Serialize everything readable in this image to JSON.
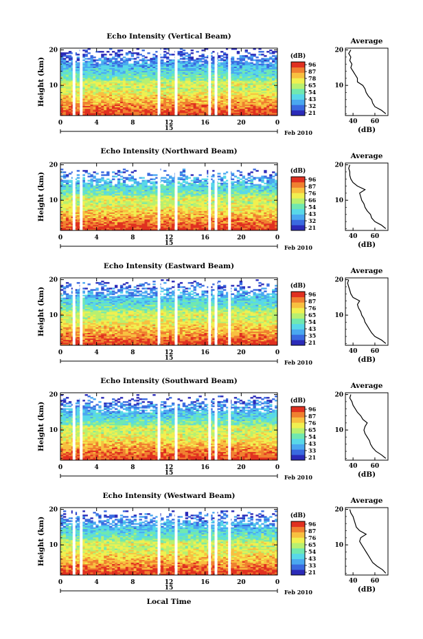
{
  "figure": {
    "date_label": "Feb 2010",
    "xlabel": "Local Time",
    "colorbar_unit": "(dB)",
    "colorbar_ticks": [
      [
        "96",
        "87",
        "78",
        "65",
        "54",
        "43",
        "32",
        "21"
      ],
      [
        "96",
        "87",
        "76",
        "66",
        "54",
        "43",
        "32",
        "21"
      ],
      [
        "96",
        "87",
        "76",
        "65",
        "54",
        "43",
        "35",
        "21"
      ],
      [
        "96",
        "87",
        "76",
        "65",
        "54",
        "43",
        "33",
        "21"
      ],
      [
        "96",
        "87",
        "76",
        "65",
        "54",
        "43",
        "33",
        "21"
      ]
    ],
    "colormap": [
      "#2b2bb8",
      "#3a6ae0",
      "#4aa8f0",
      "#58d8e8",
      "#70e8b0",
      "#b8f070",
      "#f0f050",
      "#f8c040",
      "#f08030",
      "#e03020"
    ]
  },
  "chart_data": [
    {
      "type": "heatmap",
      "title": "Echo Intensity (Vertical Beam)",
      "xlabel": "",
      "ylabel": "Height (km)",
      "x_ticks": [
        "0",
        "4",
        "8",
        "12",
        "16",
        "20",
        "0"
      ],
      "xlim": [
        0,
        24
      ],
      "y_ticks": [
        "10",
        "20"
      ],
      "ylim": [
        1.5,
        20.5
      ],
      "day_marker": "15",
      "data_gaps_hours": [
        1.5,
        2.3,
        10.9,
        12.8,
        16.5,
        17.2,
        18.7
      ],
      "gap_free_top_km": 16,
      "colorbar_range_db": [
        21,
        96
      ],
      "profile": {
        "title": "Average",
        "xlabel": "(dB)",
        "x_ticks": [
          "40",
          "60"
        ],
        "xlim": [
          33,
          72
        ],
        "y_ticks": [
          "10",
          "20"
        ],
        "ylim": [
          1.5,
          20.5
        ],
        "height_km": [
          2,
          3,
          4,
          5,
          6,
          7,
          8,
          9,
          10,
          11,
          12,
          13,
          14,
          15,
          16,
          17,
          18,
          19,
          20
        ],
        "db": [
          70,
          66,
          60,
          58,
          57,
          54,
          52,
          51,
          49,
          44,
          44,
          42,
          40,
          38,
          39,
          37,
          38,
          36,
          38
        ]
      }
    },
    {
      "type": "heatmap",
      "title": "Echo Intensity (Northward Beam)",
      "xlabel": "",
      "ylabel": "Height (km)",
      "x_ticks": [
        "0",
        "4",
        "8",
        "12",
        "16",
        "20",
        "0"
      ],
      "xlim": [
        0,
        24
      ],
      "y_ticks": [
        "10",
        "20"
      ],
      "ylim": [
        1.5,
        20.5
      ],
      "day_marker": "15",
      "data_gaps_hours": [
        1.5,
        2.3,
        10.9,
        12.8,
        16.5,
        17.2,
        18.7
      ],
      "gap_free_top_km": 14,
      "colorbar_range_db": [
        21,
        96
      ],
      "profile": {
        "title": "Average",
        "xlabel": "(dB)",
        "x_ticks": [
          "40",
          "60"
        ],
        "xlim": [
          33,
          72
        ],
        "y_ticks": [
          "10",
          "20"
        ],
        "ylim": [
          1.5,
          20.5
        ],
        "height_km": [
          2,
          3,
          4,
          5,
          6,
          7,
          8,
          9,
          10,
          11,
          12,
          13,
          14,
          15,
          16,
          17,
          18,
          19,
          20
        ],
        "db": [
          70,
          66,
          60,
          57,
          56,
          53,
          51,
          50,
          48,
          47,
          46,
          51,
          44,
          40,
          38,
          37,
          37,
          36,
          37
        ]
      }
    },
    {
      "type": "heatmap",
      "title": "Echo Intensity (Eastward Beam)",
      "xlabel": "",
      "ylabel": "Height (km)",
      "x_ticks": [
        "0",
        "4",
        "8",
        "12",
        "16",
        "20",
        "0"
      ],
      "xlim": [
        0,
        24
      ],
      "y_ticks": [
        "10",
        "20"
      ],
      "ylim": [
        1.5,
        20.5
      ],
      "day_marker": "15",
      "data_gaps_hours": [
        1.5,
        2.3,
        10.9,
        12.8,
        16.5,
        17.2,
        18.7
      ],
      "gap_free_top_km": 15,
      "colorbar_range_db": [
        21,
        96
      ],
      "profile": {
        "title": "Average",
        "xlabel": "(dB)",
        "x_ticks": [
          "40",
          "60"
        ],
        "xlim": [
          33,
          72
        ],
        "y_ticks": [
          "10",
          "20"
        ],
        "ylim": [
          1.5,
          20.5
        ],
        "height_km": [
          2,
          3,
          4,
          5,
          6,
          7,
          8,
          9,
          10,
          11,
          12,
          13,
          14,
          15,
          16,
          17,
          18,
          19,
          20
        ],
        "db": [
          70,
          66,
          60,
          57,
          55,
          53,
          51,
          50,
          48,
          47,
          45,
          44,
          46,
          40,
          38,
          37,
          36,
          35,
          36
        ]
      }
    },
    {
      "type": "heatmap",
      "title": "Echo Intensity (Southward Beam)",
      "xlabel": "",
      "ylabel": "Height (km)",
      "x_ticks": [
        "0",
        "4",
        "8",
        "12",
        "16",
        "20",
        "0"
      ],
      "xlim": [
        0,
        24
      ],
      "y_ticks": [
        "10",
        "20"
      ],
      "ylim": [
        1.5,
        20.5
      ],
      "day_marker": "15",
      "data_gaps_hours": [
        1.5,
        2.3,
        10.9,
        12.8,
        16.5,
        17.2,
        18.7
      ],
      "gap_free_top_km": 15,
      "colorbar_range_db": [
        21,
        96
      ],
      "profile": {
        "title": "Average",
        "xlabel": "(dB)",
        "x_ticks": [
          "40",
          "60"
        ],
        "xlim": [
          33,
          72
        ],
        "y_ticks": [
          "10",
          "20"
        ],
        "ylim": [
          1.5,
          20.5
        ],
        "height_km": [
          2,
          3,
          4,
          5,
          6,
          7,
          8,
          9,
          10,
          11,
          12,
          13,
          14,
          15,
          16,
          17,
          18,
          19,
          20
        ],
        "db": [
          70,
          66,
          61,
          58,
          56,
          55,
          53,
          51,
          50,
          51,
          53,
          49,
          47,
          44,
          42,
          40,
          39,
          37,
          38
        ]
      }
    },
    {
      "type": "heatmap",
      "title": "Echo Intensity (Westward Beam)",
      "xlabel": "",
      "ylabel": "Height (km)",
      "x_ticks": [
        "0",
        "4",
        "8",
        "12",
        "16",
        "20",
        "0"
      ],
      "xlim": [
        0,
        24
      ],
      "y_ticks": [
        "10",
        "20"
      ],
      "ylim": [
        1.5,
        20.5
      ],
      "day_marker": "15",
      "data_gaps_hours": [
        1.5,
        2.3,
        10.9,
        12.8,
        16.5,
        17.2,
        18.7
      ],
      "gap_free_top_km": 15,
      "colorbar_range_db": [
        21,
        96
      ],
      "profile": {
        "title": "Average",
        "xlabel": "(dB)",
        "x_ticks": [
          "40",
          "60"
        ],
        "xlim": [
          33,
          72
        ],
        "y_ticks": [
          "10",
          "20"
        ],
        "ylim": [
          1.5,
          20.5
        ],
        "height_km": [
          2,
          3,
          4,
          5,
          6,
          7,
          8,
          9,
          10,
          11,
          12,
          13,
          14,
          15,
          16,
          17,
          18,
          19,
          20
        ],
        "db": [
          70,
          67,
          62,
          58,
          56,
          54,
          52,
          50,
          48,
          46,
          47,
          52,
          46,
          43,
          42,
          41,
          40,
          38,
          37
        ]
      }
    }
  ]
}
